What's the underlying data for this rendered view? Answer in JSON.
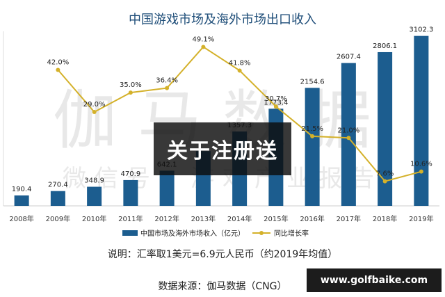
{
  "chart_data": {
    "type": "bar+line",
    "title": "中国游戏市场及海外市场出口收入",
    "categories": [
      "2008年",
      "2009年",
      "2010年",
      "2011年",
      "2012年",
      "2013年",
      "2014年",
      "2015年",
      "2016年",
      "2017年",
      "2018年",
      "2019年"
    ],
    "series": [
      {
        "name": "中国市场及海外市场收入（亿元）",
        "kind": "bar",
        "values": [
          190.4,
          270.4,
          348.9,
          470.9,
          642.1,
          1000,
          1357.3,
          1773.4,
          2154.6,
          2607.4,
          2806.1,
          3102.3
        ],
        "labels": [
          "190.4",
          "270.4",
          "348.9",
          "470.9",
          "642.1",
          "",
          "1357.3",
          "1773.4",
          "2154.6",
          "2607.4",
          "2806.1",
          "3102.3"
        ]
      },
      {
        "name": "同比增长率",
        "kind": "line",
        "values": [
          null,
          42.0,
          29.0,
          35.0,
          36.4,
          49.1,
          41.8,
          30.7,
          21.5,
          21.0,
          7.6,
          10.6
        ],
        "labels": [
          "",
          "42.0%",
          "29.0%",
          "35.0%",
          "36.4%",
          "49.1%",
          "41.8%",
          "30.7%",
          "21.5%",
          "21.0%",
          "7.6%",
          "10.6%"
        ]
      }
    ],
    "ylim": [
      0,
      3250
    ],
    "y2lim": [
      0,
      55
    ],
    "colors": {
      "bar": "#1c5d8f",
      "line": "#d4b12a"
    },
    "grid": false,
    "legend_position": "bottom"
  },
  "overlay": {
    "text": "关于注册送"
  },
  "watermark": {
    "line1": "伽马数据",
    "line2": "微信号：游戏产业报告"
  },
  "note": "说明：汇率取1美元=6.9元人民币（约2019年均值）",
  "source": "数据来源：伽马数据（CNG）",
  "site": "www.golfbaike.com"
}
